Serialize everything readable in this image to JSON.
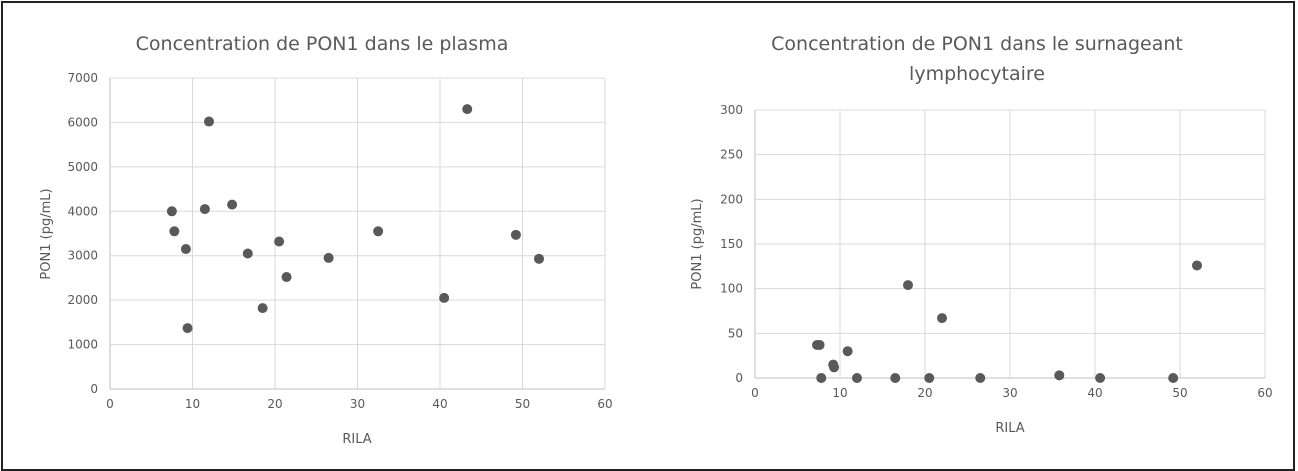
{
  "chart_data": [
    {
      "type": "scatter",
      "title": "Concentration de PON1 dans le plasma",
      "xlabel": "RILA",
      "ylabel": "PON1 (pg/mL)",
      "xlim": [
        0,
        60
      ],
      "ylim": [
        0,
        7000
      ],
      "xticks": [
        "0",
        "10",
        "20",
        "30",
        "40",
        "50",
        "60"
      ],
      "yticks": [
        "0",
        "1000",
        "2000",
        "3000",
        "4000",
        "5000",
        "6000",
        "7000"
      ],
      "grid": true,
      "marker_color": "#595959",
      "points": [
        {
          "x": 7.5,
          "y": 4000
        },
        {
          "x": 7.8,
          "y": 3550
        },
        {
          "x": 9.2,
          "y": 3150
        },
        {
          "x": 9.4,
          "y": 1370
        },
        {
          "x": 11.5,
          "y": 4050
        },
        {
          "x": 12.0,
          "y": 6020
        },
        {
          "x": 14.8,
          "y": 4150
        },
        {
          "x": 16.7,
          "y": 3050
        },
        {
          "x": 18.5,
          "y": 1820
        },
        {
          "x": 20.5,
          "y": 3320
        },
        {
          "x": 21.4,
          "y": 2520
        },
        {
          "x": 26.5,
          "y": 2950
        },
        {
          "x": 32.5,
          "y": 3550
        },
        {
          "x": 40.5,
          "y": 2050
        },
        {
          "x": 43.3,
          "y": 6300
        },
        {
          "x": 49.2,
          "y": 3470
        },
        {
          "x": 52.0,
          "y": 2930
        }
      ]
    },
    {
      "type": "scatter",
      "title_lines": [
        "Concentration de PON1 dans le surnageant",
        "lymphocytaire"
      ],
      "xlabel": "RILA",
      "ylabel": "PON1 (pg/mL)",
      "xlim": [
        0,
        60
      ],
      "ylim": [
        0,
        300
      ],
      "xticks": [
        "0",
        "10",
        "20",
        "30",
        "40",
        "50",
        "60"
      ],
      "yticks": [
        "0",
        "50",
        "100",
        "150",
        "200",
        "250",
        "300"
      ],
      "grid": true,
      "marker_color": "#595959",
      "points": [
        {
          "x": 7.3,
          "y": 37
        },
        {
          "x": 7.6,
          "y": 37
        },
        {
          "x": 7.8,
          "y": 0
        },
        {
          "x": 9.2,
          "y": 15
        },
        {
          "x": 9.3,
          "y": 12
        },
        {
          "x": 10.9,
          "y": 30
        },
        {
          "x": 12.0,
          "y": 0
        },
        {
          "x": 16.5,
          "y": 0
        },
        {
          "x": 18.0,
          "y": 104
        },
        {
          "x": 20.5,
          "y": 0
        },
        {
          "x": 22.0,
          "y": 67
        },
        {
          "x": 26.5,
          "y": 0
        },
        {
          "x": 35.8,
          "y": 3
        },
        {
          "x": 40.6,
          "y": 0
        },
        {
          "x": 49.2,
          "y": 0
        },
        {
          "x": 52.0,
          "y": 126
        }
      ]
    }
  ]
}
